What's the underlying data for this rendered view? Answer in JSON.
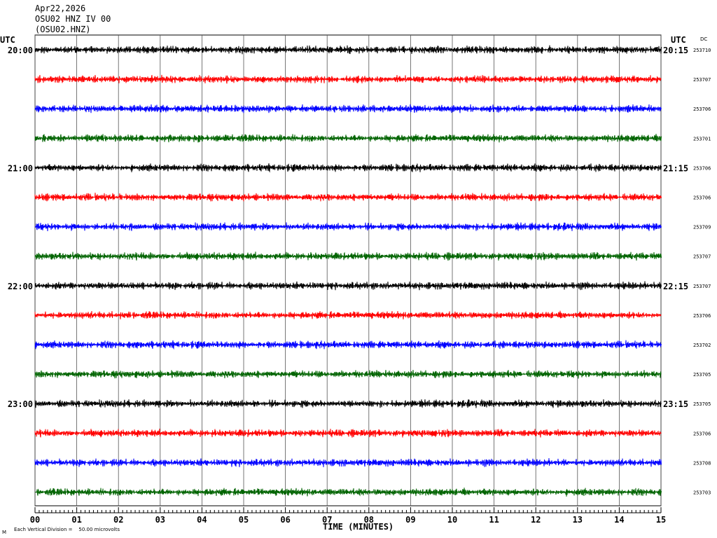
{
  "header": {
    "date": "Apr22,2026",
    "station_line": "OSU02 HNZ IV 00",
    "station_code": "(OSU02.HNZ)",
    "left_utc": "UTC",
    "right_utc": "UTC",
    "dc_label": "DC"
  },
  "footer": {
    "xlabel": "TIME (MINUTES)",
    "scale_note": "Each Vertical Division =    50.00 microvolts",
    "corner_mark": "M"
  },
  "chart_data": {
    "type": "line",
    "title": "",
    "xlabel": "TIME (MINUTES)",
    "xlim": [
      0,
      15
    ],
    "x_ticks": [
      "00",
      "01",
      "02",
      "03",
      "04",
      "05",
      "06",
      "07",
      "08",
      "09",
      "10",
      "11",
      "12",
      "13",
      "14",
      "15"
    ],
    "rows_per_hour": 4,
    "trace_colors": [
      "#000000",
      "#ff0000",
      "#0000ff",
      "#006400"
    ],
    "left_time_labels": [
      "20:00",
      "21:00",
      "22:00",
      "23:00"
    ],
    "right_time_labels": [
      "20:15",
      "21:15",
      "22:15",
      "23:15"
    ],
    "dc_offsets": [
      "253710",
      "253707",
      "253706",
      "253701",
      "253706",
      "253706",
      "253709",
      "253707",
      "253707",
      "253706",
      "253702",
      "253705",
      "253705",
      "253706",
      "253708",
      "253703"
    ]
  }
}
